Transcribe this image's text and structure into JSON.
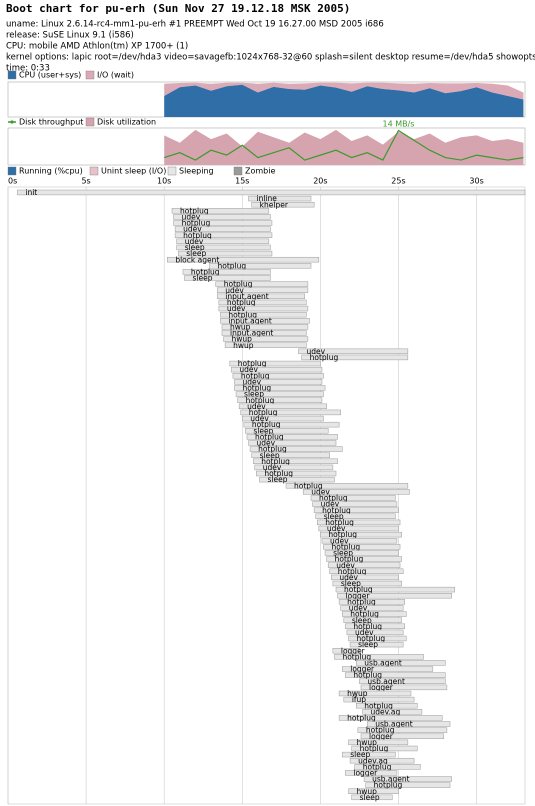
{
  "header": {
    "title": "Boot chart for pu-erh (Sun Nov 27 19.12.18 MSK 2005)",
    "lines": [
      "uname: Linux 2.6.14-rc4-mm1-pu-erh #1 PREEMPT Wed Oct 19 16.27.00 MSD 2005 i686",
      "release: SuSE Linux 9.1 (i586)",
      "CPU: mobile AMD Athlon(tm) XP 1700+ (1)",
      "kernel options: lapic root=/dev/hda3 video=savagefb:1024x768-32@60 splash=silent desktop resume=/dev/hda5 showopts init=/sbin/bootchartd",
      "time: 0:33"
    ]
  },
  "chart_data": [
    {
      "type": "area",
      "stacked": true,
      "xlim": [
        0,
        33.1
      ],
      "ylim": [
        0,
        100
      ],
      "x": [
        10,
        11,
        12,
        13,
        14,
        15,
        16,
        17,
        18,
        19,
        20,
        21,
        22,
        23,
        24,
        25,
        26,
        27,
        28,
        29,
        30,
        31,
        32,
        33
      ],
      "series": [
        {
          "name": "CPU (user+sys)",
          "color": "#2f6ea6",
          "values": [
            60,
            85,
            90,
            75,
            88,
            92,
            70,
            86,
            80,
            78,
            90,
            84,
            72,
            88,
            80,
            76,
            70,
            82,
            68,
            74,
            85,
            70,
            60,
            50
          ]
        },
        {
          "name": "I/O (wait)",
          "color": "#dcaab6",
          "values": [
            35,
            12,
            8,
            20,
            10,
            6,
            25,
            12,
            15,
            18,
            8,
            14,
            24,
            10,
            18,
            20,
            25,
            15,
            28,
            22,
            12,
            25,
            30,
            20
          ]
        }
      ]
    },
    {
      "type": "area",
      "xlim": [
        0,
        33.1
      ],
      "ylim": [
        0,
        100
      ],
      "y2lim": [
        0,
        15
      ],
      "x": [
        10,
        11,
        12,
        13,
        14,
        15,
        16,
        17,
        18,
        19,
        20,
        21,
        22,
        23,
        24,
        25,
        26,
        27,
        28,
        29,
        30,
        31,
        32,
        33
      ],
      "annotation": "14 MB/s",
      "series": [
        {
          "name": "Disk throughput",
          "color": "#3c9a2e",
          "type": "line",
          "axis": "y2",
          "values": [
            3,
            5,
            2,
            6,
            4,
            8,
            3,
            5,
            7,
            2,
            4,
            6,
            3,
            5,
            2,
            14,
            10,
            6,
            3,
            2,
            4,
            3,
            2,
            3
          ]
        },
        {
          "name": "Disk utilization",
          "color": "#d6a4ae",
          "values": [
            80,
            60,
            95,
            70,
            85,
            50,
            90,
            75,
            60,
            88,
            70,
            95,
            65,
            80,
            55,
            90,
            70,
            85,
            60,
            75,
            80,
            65,
            70,
            60
          ]
        }
      ]
    },
    {
      "type": "gantt",
      "xlim": [
        0,
        33.1
      ],
      "xticks": [
        {
          "value": 0,
          "label": "0s"
        },
        {
          "value": 5,
          "label": "5s"
        },
        {
          "value": 10,
          "label": "10s"
        },
        {
          "value": 15,
          "label": "15s"
        },
        {
          "value": 20,
          "label": "20s"
        },
        {
          "value": 25,
          "label": "25s"
        },
        {
          "value": 30,
          "label": "30s"
        }
      ],
      "grid": true,
      "legend": [
        {
          "name": "Running (%cpu)",
          "color": "#2f6ea6"
        },
        {
          "name": "Unint sleep (I/O)",
          "color": "#e8c2ca"
        },
        {
          "name": "Sleeping",
          "color": "#e6e6e6"
        },
        {
          "name": "Zombie",
          "color": "#9a9a9a"
        }
      ],
      "bar_color": "#e6e6e6",
      "names": [
        "init",
        "inline",
        "khelper",
        "hotplug",
        "udev",
        "hotplug",
        "udev",
        "hotplug",
        "udev",
        "sleep",
        "sleep",
        "block agent",
        "hotplug",
        "hotplug",
        "sleep",
        "hotplug",
        "udev",
        "input.agent",
        "hotplug",
        "udev",
        "hotplug",
        "input.agent",
        "hwup",
        "input.agent",
        "hwup",
        "hwup",
        "udev",
        "hotplug",
        "hotplug",
        "udev",
        "hotplug",
        "udev",
        "hotplug",
        "sleep",
        "hotplug",
        "udev",
        "hotplug",
        "udev",
        "hotplug",
        "sleep",
        "hotplug",
        "udev",
        "hotplug",
        "sleep",
        "hotplug",
        "udev",
        "hotplug",
        "sleep",
        "hotplug",
        "udev",
        "hotplug",
        "udev",
        "hotplug",
        "sleep",
        "hotplug",
        "udev",
        "hotplug",
        "udev",
        "hotplug",
        "sleep",
        "hotplug",
        "udev",
        "hotplug",
        "udev",
        "sleep",
        "hotplug",
        "logger",
        "hotplug",
        "udev",
        "hotplug",
        "sleep",
        "hotplug",
        "udev",
        "hotplug",
        "sleep",
        "logger",
        "hotplug",
        "usb.agent",
        "logger",
        "hotplug",
        "usb.agent",
        "logger",
        "hwup",
        "ifup",
        "hotplug",
        "udev.ag",
        "hotplug",
        "usb.agent",
        "hotplug",
        "logger",
        "hwup",
        "hotplug",
        "sleep",
        "udev.ag",
        "hotplug",
        "logger",
        "usb.agent",
        "hotplug",
        "hwup",
        "sleep"
      ],
      "start": [
        0.6,
        15.4,
        15.6,
        10.5,
        10.6,
        10.6,
        10.7,
        10.7,
        10.8,
        10.8,
        10.9,
        10.2,
        12.9,
        11.2,
        11.3,
        13.3,
        13.4,
        13.4,
        13.5,
        13.5,
        13.6,
        13.6,
        13.7,
        13.7,
        13.8,
        13.9,
        18.6,
        18.8,
        14.2,
        14.3,
        14.4,
        14.5,
        14.5,
        14.6,
        14.7,
        14.8,
        14.9,
        15.0,
        15.1,
        15.2,
        15.3,
        15.4,
        15.5,
        15.6,
        15.7,
        15.8,
        15.9,
        16.1,
        17.8,
        18.9,
        19.4,
        19.5,
        19.6,
        19.7,
        19.8,
        19.9,
        20.0,
        20.1,
        20.2,
        20.3,
        20.4,
        20.5,
        20.6,
        20.7,
        20.8,
        21.0,
        21.1,
        21.2,
        21.3,
        21.4,
        21.5,
        21.6,
        21.7,
        21.8,
        21.9,
        20.8,
        20.9,
        22.3,
        21.4,
        21.6,
        22.5,
        22.6,
        21.2,
        21.5,
        22.3,
        22.7,
        21.2,
        23.0,
        22.4,
        22.6,
        21.8,
        22.0,
        21.4,
        21.9,
        22.2,
        21.6,
        22.8,
        22.9,
        21.8,
        22.0
      ],
      "end": [
        33.1,
        19.4,
        19.6,
        16.7,
        16.8,
        16.9,
        16.8,
        16.9,
        16.7,
        16.8,
        16.9,
        19.9,
        19.4,
        16.8,
        16.8,
        19.2,
        19.2,
        19.0,
        19.1,
        19.2,
        19.1,
        19.3,
        19.2,
        19.1,
        19.2,
        19.1,
        25.6,
        25.6,
        20.0,
        20.1,
        20.2,
        20.1,
        20.3,
        20.2,
        20.1,
        20.4,
        21.3,
        20.2,
        21.2,
        20.5,
        21.1,
        21.0,
        21.4,
        20.6,
        21.1,
        20.8,
        21.0,
        20.9,
        25.6,
        25.7,
        24.8,
        24.9,
        25.0,
        24.8,
        25.1,
        25.0,
        25.2,
        24.9,
        25.1,
        25.0,
        25.2,
        25.1,
        25.3,
        25.0,
        25.2,
        28.6,
        28.4,
        25.4,
        25.3,
        25.5,
        25.2,
        25.4,
        25.3,
        25.5,
        25.3,
        22.5,
        26.6,
        28.0,
        27.2,
        28.0,
        28.0,
        28.1,
        25.8,
        26.0,
        26.2,
        26.5,
        27.8,
        28.3,
        28.1,
        27.9,
        25.6,
        26.2,
        24.8,
        26.0,
        26.4,
        24.9,
        28.4,
        28.3,
        25.0,
        24.6
      ]
    }
  ]
}
